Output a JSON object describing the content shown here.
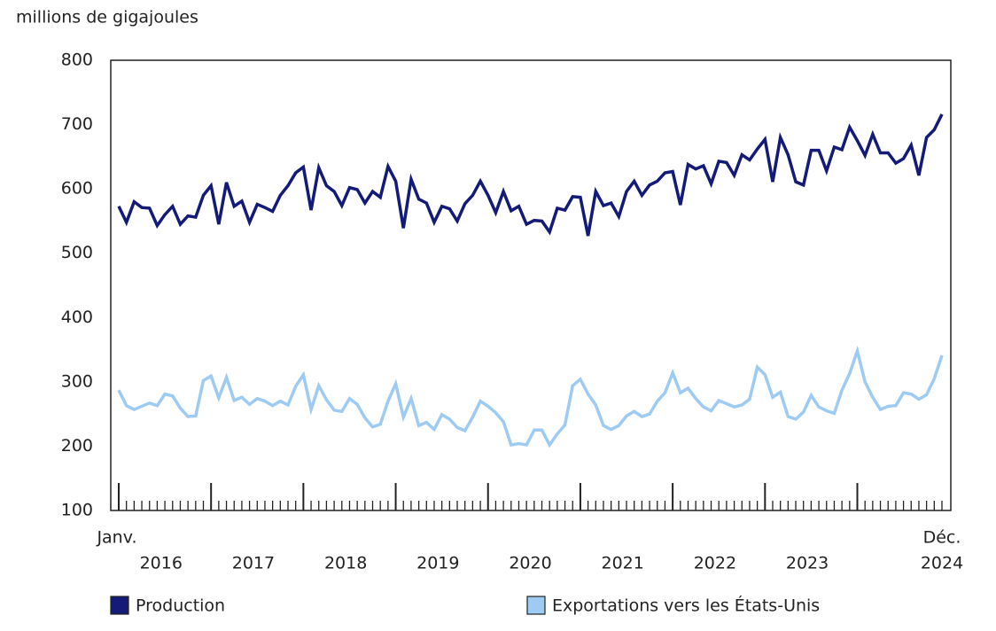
{
  "chart_data": {
    "type": "line",
    "y_axis_label": "millions de gigajoules",
    "categories": [
      "Janv.",
      null,
      null,
      null,
      null,
      null,
      null,
      null,
      null,
      null,
      null,
      null,
      null,
      null,
      null,
      null,
      null,
      null,
      null,
      null,
      null,
      null,
      null,
      null,
      null,
      null,
      null,
      null,
      null,
      null,
      null,
      null,
      null,
      null,
      null,
      null,
      null,
      null,
      null,
      null,
      null,
      null,
      null,
      null,
      null,
      null,
      null,
      null,
      null,
      null,
      null,
      null,
      null,
      null,
      null,
      null,
      null,
      null,
      null,
      null,
      null,
      null,
      null,
      null,
      null,
      null,
      null,
      null,
      null,
      null,
      null,
      null,
      null,
      null,
      null,
      null,
      null,
      null,
      null,
      null,
      null,
      null,
      null,
      null,
      null,
      null,
      null,
      null,
      null,
      null,
      null,
      null,
      null,
      null,
      null,
      null,
      null,
      null,
      null,
      null,
      null,
      null,
      null,
      null,
      null,
      null,
      null,
      "Déc."
    ],
    "year_labels": [
      "2016",
      "2017",
      "2018",
      "2019",
      "2020",
      "2021",
      "2022",
      "2023",
      "2024"
    ],
    "ylim": [
      100,
      800
    ],
    "yticks": [
      100,
      200,
      300,
      400,
      500,
      600,
      700,
      800
    ],
    "series": [
      {
        "name": "Production",
        "color": "#141a78",
        "values": [
          573,
          548,
          580,
          571,
          570,
          543,
          560,
          573,
          545,
          558,
          556,
          590,
          605,
          545,
          610,
          573,
          581,
          548,
          576,
          571,
          565,
          590,
          605,
          625,
          634,
          567,
          633,
          605,
          596,
          574,
          602,
          599,
          578,
          596,
          587,
          635,
          612,
          539,
          615,
          584,
          578,
          548,
          573,
          569,
          550,
          577,
          590,
          612,
          590,
          563,
          596,
          566,
          573,
          545,
          551,
          550,
          533,
          570,
          567,
          588,
          587,
          527,
          596,
          574,
          578,
          557,
          596,
          612,
          590,
          606,
          612,
          625,
          627,
          575,
          638,
          631,
          636,
          608,
          643,
          641,
          621,
          653,
          645,
          662,
          677,
          611,
          680,
          653,
          611,
          606,
          660,
          660,
          628,
          665,
          661,
          696,
          675,
          652,
          685,
          656,
          656,
          640,
          647,
          668,
          621,
          680,
          692,
          716
        ]
      },
      {
        "name": "Exportations vers les États-Unis",
        "color": "#9dcbf3",
        "values": [
          287,
          263,
          257,
          262,
          267,
          263,
          281,
          278,
          259,
          246,
          247,
          302,
          309,
          275,
          307,
          271,
          276,
          265,
          274,
          270,
          263,
          270,
          264,
          293,
          311,
          257,
          294,
          272,
          256,
          254,
          274,
          265,
          244,
          230,
          234,
          270,
          297,
          245,
          274,
          232,
          237,
          226,
          249,
          242,
          229,
          224,
          245,
          270,
          262,
          252,
          238,
          202,
          204,
          202,
          225,
          225,
          202,
          219,
          233,
          294,
          304,
          281,
          264,
          232,
          226,
          232,
          247,
          254,
          246,
          250,
          270,
          283,
          314,
          283,
          290,
          274,
          261,
          255,
          271,
          266,
          261,
          264,
          273,
          323,
          311,
          276,
          284,
          246,
          242,
          253,
          279,
          261,
          255,
          251,
          287,
          313,
          348,
          300,
          276,
          257,
          262,
          263,
          283,
          281,
          273,
          280,
          305,
          341
        ]
      }
    ]
  }
}
